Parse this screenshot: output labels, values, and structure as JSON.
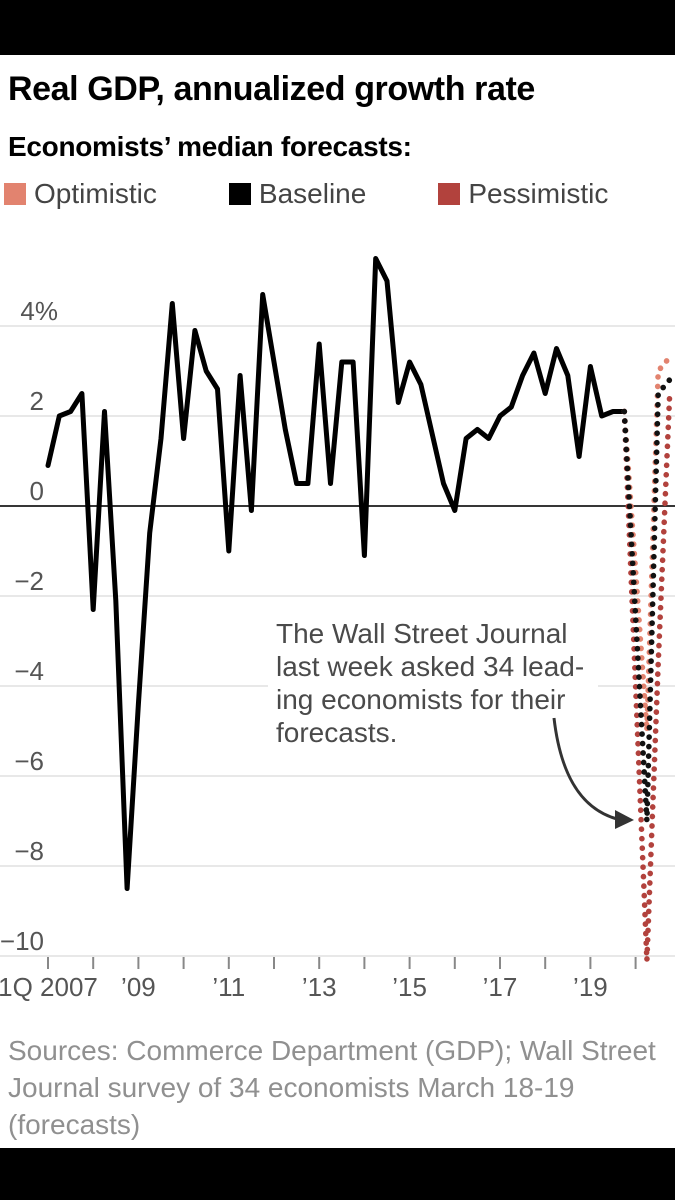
{
  "header": {
    "title": "Real GDP, annualized growth rate",
    "subtitle": "Economists’ median forecasts:",
    "legend": [
      {
        "label": "Optimistic",
        "color": "#e2836f"
      },
      {
        "label": "Baseline",
        "color": "#000000"
      },
      {
        "label": "Pessimistic",
        "color": "#b2423d"
      }
    ]
  },
  "annotation": {
    "lines": [
      "The Wall Street Journal",
      "last week asked 34 lead-",
      "ing economists for their",
      "forecasts."
    ]
  },
  "source": {
    "lines": [
      "Sources: Commerce Department (GDP); Wall Street",
      "Journal survey of 34 economists March 18-19",
      "(forecasts)"
    ]
  },
  "chart_data": {
    "type": "line",
    "title": "Real GDP, annualized growth rate",
    "unit": "percent, annualized",
    "ylim": [
      -10.5,
      5.8
    ],
    "grid": true,
    "legend_position": "top",
    "y_ticks": [
      {
        "value": 4,
        "label": "4%"
      },
      {
        "value": 2,
        "label": "2"
      },
      {
        "value": 0,
        "label": "0"
      },
      {
        "value": -2,
        "label": "−2"
      },
      {
        "value": -4,
        "label": "−4"
      },
      {
        "value": -6,
        "label": "−6"
      },
      {
        "value": -8,
        "label": "−8"
      },
      {
        "value": -10,
        "label": "−10"
      }
    ],
    "x_ticks_years": [
      2007,
      2008,
      2009,
      2010,
      2011,
      2012,
      2013,
      2014,
      2015,
      2016,
      2017,
      2018,
      2019,
      2020
    ],
    "x_tick_labels": [
      {
        "year": 2007,
        "label": "1Q 2007"
      },
      {
        "year": 2009,
        "label": "’09"
      },
      {
        "year": 2011,
        "label": "’11"
      },
      {
        "year": 2013,
        "label": "’13"
      },
      {
        "year": 2015,
        "label": "’15"
      },
      {
        "year": 2017,
        "label": "’17"
      },
      {
        "year": 2019,
        "label": "’19"
      }
    ],
    "actual": {
      "name": "Real GDP, quarterly annualized growth",
      "start": "2007 Q1",
      "frequency": "quarterly",
      "color": "#000000",
      "values": [
        0.9,
        2.0,
        2.1,
        2.5,
        -2.3,
        2.1,
        -2.1,
        -8.5,
        -4.4,
        -0.6,
        1.5,
        4.5,
        1.5,
        3.9,
        3.0,
        2.6,
        -1.0,
        2.9,
        -0.1,
        4.7,
        3.2,
        1.7,
        0.5,
        0.5,
        3.6,
        0.5,
        3.2,
        3.2,
        -1.1,
        5.5,
        5.0,
        2.3,
        3.2,
        2.7,
        1.6,
        0.5,
        -0.1,
        1.5,
        1.7,
        1.5,
        2.0,
        2.2,
        2.9,
        3.4,
        2.5,
        3.5,
        2.9,
        1.1,
        3.1,
        2.0,
        2.1,
        2.1
      ]
    },
    "forecast_quarters": [
      "2019 Q4",
      "2020 Q2",
      "2020 Q3",
      "2020 Q4"
    ],
    "forecast_series": [
      {
        "name": "Optimistic",
        "color": "#e2836f",
        "values": [
          2.1,
          -5.0,
          3.0,
          3.3
        ]
      },
      {
        "name": "Baseline",
        "color": "#111111",
        "values": [
          2.1,
          -7.0,
          2.5,
          2.8
        ]
      },
      {
        "name": "Pessimistic",
        "color": "#b2423d",
        "values": [
          2.1,
          -10.1,
          -3.5,
          2.4
        ]
      }
    ]
  }
}
